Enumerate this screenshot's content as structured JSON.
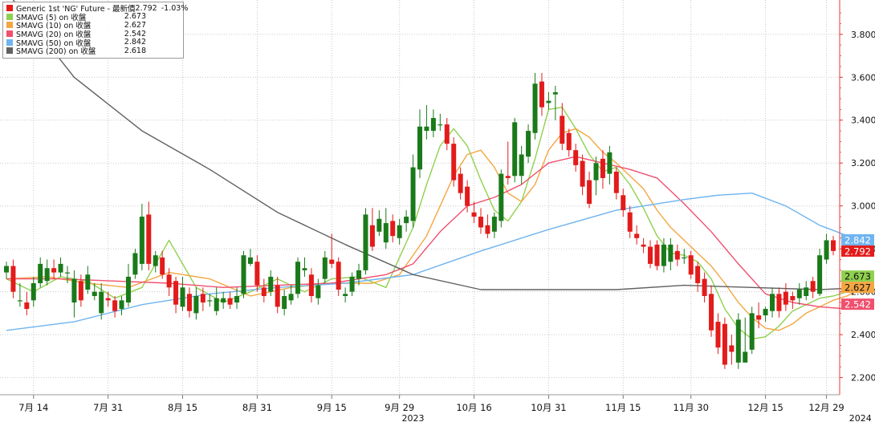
{
  "colors": {
    "up_candle": "#1a7a1a",
    "down_candle": "#e31b1b",
    "sma5": "#8fd14f",
    "sma10": "#f4a641",
    "sma20": "#f0506e",
    "sma50": "#6fb4f0",
    "sma200": "#616161",
    "axis": "#e53935",
    "grid": "#c9c9c9"
  },
  "legend": {
    "main_label": "Generic 1st 'NG' Future - 最新價",
    "main_value": "2.792",
    "main_change": "-1.03%",
    "series": [
      {
        "label": "SMAVG (5)  on 收盤",
        "value": "2.673",
        "color": "#8fd14f"
      },
      {
        "label": "SMAVG (10)  on 收盤",
        "value": "2.627",
        "color": "#f4a641"
      },
      {
        "label": "SMAVG (20)  on 收盤",
        "value": "2.542",
        "color": "#f0506e"
      },
      {
        "label": "SMAVG (50)  on 收盤",
        "value": "2.842",
        "color": "#6fb4f0"
      },
      {
        "label": "SMAVG (200)  on 收盤",
        "value": "2.618",
        "color": "#616161"
      }
    ]
  },
  "chart_data": {
    "type": "candlestick",
    "ylim": [
      2.12,
      3.96
    ],
    "y_ticks": [
      "2.200",
      "2.400",
      "2.600",
      "2.800",
      "3.000",
      "3.200",
      "3.400",
      "3.600",
      "3.800"
    ],
    "y_tick_values": [
      2.2,
      2.4,
      2.6,
      2.8,
      3.0,
      3.2,
      3.4,
      3.6,
      3.8
    ],
    "x_ticks": [
      {
        "label": "7月 14",
        "index": 4
      },
      {
        "label": "7月 31",
        "index": 15
      },
      {
        "label": "8月 15",
        "index": 26
      },
      {
        "label": "8月 31",
        "index": 37
      },
      {
        "label": "9月 15",
        "index": 48
      },
      {
        "label": "9月 29",
        "index": 58
      },
      {
        "label": "10月 16",
        "index": 69
      },
      {
        "label": "10月 31",
        "index": 80
      },
      {
        "label": "11月 15",
        "index": 91
      },
      {
        "label": "11月 30",
        "index": 101
      },
      {
        "label": "12月 15",
        "index": 112
      },
      {
        "label": "12月 29",
        "index": 121
      }
    ],
    "year_labels": [
      {
        "label": "2023",
        "index": 60
      },
      {
        "label": "2024",
        "index": 126
      }
    ],
    "last_value_tags": [
      {
        "value": 2.842,
        "label": "2.842",
        "color": "#6fb4f0"
      },
      {
        "value": 2.792,
        "label": "2.792",
        "color": "#e31b1b"
      },
      {
        "value": 2.673,
        "label": "2.673",
        "color": "#8fd14f"
      },
      {
        "value": 2.627,
        "label": "2.627",
        "color": "#f4a641"
      },
      {
        "value": 2.542,
        "label": "2.542",
        "color": "#f0506e"
      }
    ],
    "candles": {
      "open": [
        2.69,
        2.72,
        2.56,
        2.55,
        2.56,
        2.64,
        2.65,
        2.71,
        2.69,
        2.69,
        2.55,
        2.65,
        2.61,
        2.58,
        2.5,
        2.57,
        2.56,
        2.52,
        2.55,
        2.68,
        2.73,
        2.96,
        2.72,
        2.76,
        2.68,
        2.65,
        2.53,
        2.59,
        2.5,
        2.59,
        2.56,
        2.51,
        2.55,
        2.57,
        2.55,
        2.59,
        2.73,
        2.74,
        2.62,
        2.6,
        2.63,
        2.52,
        2.56,
        2.59,
        2.7,
        2.68,
        2.57,
        2.66,
        2.75,
        2.74,
        2.58,
        2.6,
        2.66,
        2.7,
        2.91,
        2.88,
        2.83,
        2.93,
        2.85,
        2.92,
        2.93,
        3.17,
        3.35,
        3.35,
        3.38,
        3.38,
        3.29,
        3.15,
        3.09,
        2.97,
        2.95,
        2.91,
        2.88,
        2.93,
        3.14,
        3.14,
        3.14,
        3.23,
        3.34,
        3.58,
        3.48,
        3.52,
        3.42,
        3.34,
        3.26,
        3.21,
        3.12,
        3.12,
        3.22,
        3.15,
        3.16,
        3.05,
        2.97,
        2.87,
        2.82,
        2.81,
        2.82,
        2.72,
        2.74,
        2.79,
        2.76,
        2.77,
        2.72,
        2.66,
        2.59,
        2.46,
        2.45,
        2.35,
        2.27,
        2.27,
        2.33,
        2.49,
        2.49,
        2.51,
        2.59,
        2.6,
        2.58,
        2.57,
        2.58,
        2.65,
        2.59,
        2.75,
        2.84
      ],
      "close": [
        2.72,
        2.6,
        2.56,
        2.52,
        2.64,
        2.73,
        2.71,
        2.69,
        2.73,
        2.69,
        2.66,
        2.56,
        2.68,
        2.6,
        2.6,
        2.56,
        2.51,
        2.56,
        2.67,
        2.78,
        2.95,
        2.73,
        2.77,
        2.68,
        2.62,
        2.54,
        2.62,
        2.51,
        2.58,
        2.55,
        2.56,
        2.57,
        2.57,
        2.54,
        2.58,
        2.77,
        2.76,
        2.63,
        2.58,
        2.67,
        2.53,
        2.58,
        2.59,
        2.74,
        2.71,
        2.58,
        2.63,
        2.76,
        2.73,
        2.61,
        2.59,
        2.67,
        2.7,
        2.96,
        2.81,
        2.94,
        2.92,
        2.86,
        2.91,
        2.95,
        3.18,
        3.37,
        3.37,
        3.41,
        3.38,
        3.29,
        3.12,
        3.06,
        3.0,
        2.95,
        2.9,
        2.87,
        2.95,
        3.15,
        3.13,
        3.39,
        3.24,
        3.35,
        3.57,
        3.46,
        3.49,
        3.53,
        3.29,
        3.26,
        3.19,
        3.09,
        3.01,
        3.2,
        3.13,
        3.25,
        3.06,
        2.98,
        2.88,
        2.85,
        2.81,
        2.73,
        2.72,
        2.82,
        2.82,
        2.75,
        2.76,
        2.68,
        2.64,
        2.58,
        2.42,
        2.34,
        2.26,
        2.32,
        2.47,
        2.32,
        2.5,
        2.47,
        2.52,
        2.59,
        2.51,
        2.54,
        2.56,
        2.61,
        2.62,
        2.6,
        2.77,
        2.84,
        2.79
      ],
      "high": [
        2.74,
        2.75,
        2.64,
        2.6,
        2.67,
        2.76,
        2.75,
        2.75,
        2.76,
        2.72,
        2.7,
        2.68,
        2.72,
        2.64,
        2.64,
        2.6,
        2.58,
        2.58,
        2.73,
        2.8,
        3.01,
        3.02,
        2.79,
        2.79,
        2.71,
        2.67,
        2.67,
        2.62,
        2.62,
        2.62,
        2.59,
        2.62,
        2.6,
        2.6,
        2.62,
        2.79,
        2.8,
        2.77,
        2.66,
        2.7,
        2.67,
        2.61,
        2.63,
        2.76,
        2.76,
        2.71,
        2.66,
        2.79,
        2.87,
        2.76,
        2.62,
        2.69,
        2.73,
        2.99,
        2.99,
        2.98,
        2.99,
        2.96,
        2.94,
        2.98,
        3.24,
        3.45,
        3.47,
        3.45,
        3.43,
        3.41,
        3.32,
        3.18,
        3.12,
        3.02,
        2.99,
        2.96,
        2.97,
        3.17,
        3.3,
        3.41,
        3.28,
        3.38,
        3.62,
        3.62,
        3.53,
        3.56,
        3.48,
        3.36,
        3.29,
        3.24,
        3.16,
        3.23,
        3.26,
        3.28,
        3.18,
        3.08,
        3.0,
        2.91,
        2.85,
        2.84,
        2.84,
        2.85,
        2.85,
        2.82,
        2.8,
        2.79,
        2.74,
        2.69,
        2.63,
        2.5,
        2.48,
        2.4,
        2.5,
        2.48,
        2.53,
        2.55,
        2.53,
        2.62,
        2.62,
        2.64,
        2.6,
        2.64,
        2.65,
        2.67,
        2.8,
        2.87,
        2.86
      ],
      "low": [
        2.66,
        2.57,
        2.53,
        2.49,
        2.53,
        2.62,
        2.63,
        2.66,
        2.67,
        2.64,
        2.48,
        2.53,
        2.59,
        2.56,
        2.47,
        2.53,
        2.48,
        2.49,
        2.53,
        2.66,
        2.7,
        2.7,
        2.69,
        2.66,
        2.58,
        2.5,
        2.51,
        2.48,
        2.47,
        2.51,
        2.53,
        2.49,
        2.52,
        2.52,
        2.52,
        2.57,
        2.72,
        2.6,
        2.55,
        2.58,
        2.5,
        2.49,
        2.54,
        2.57,
        2.67,
        2.55,
        2.54,
        2.64,
        2.71,
        2.58,
        2.55,
        2.58,
        2.63,
        2.68,
        2.79,
        2.86,
        2.8,
        2.83,
        2.82,
        2.88,
        2.9,
        3.13,
        3.31,
        3.32,
        3.35,
        3.26,
        3.09,
        3.03,
        2.97,
        2.92,
        2.87,
        2.85,
        2.85,
        2.9,
        3.1,
        3.11,
        3.1,
        3.2,
        3.31,
        3.42,
        3.45,
        3.4,
        3.26,
        3.23,
        3.16,
        3.05,
        2.99,
        3.05,
        3.08,
        3.1,
        3.03,
        2.95,
        2.85,
        2.82,
        2.78,
        2.71,
        2.7,
        2.69,
        2.7,
        2.72,
        2.73,
        2.66,
        2.6,
        2.55,
        2.39,
        2.31,
        2.24,
        2.26,
        2.24,
        2.3,
        2.31,
        2.43,
        2.46,
        2.48,
        2.48,
        2.51,
        2.52,
        2.54,
        2.56,
        2.57,
        2.58,
        2.73,
        2.77
      ]
    },
    "series": [
      {
        "name": "SMAVG (5)",
        "color": "#8fd14f",
        "x": [
          0,
          4,
          8,
          12,
          16,
          20,
          24,
          28,
          32,
          36,
          40,
          44,
          48,
          52,
          56,
          60,
          62,
          64,
          66,
          68,
          70,
          72,
          74,
          76,
          78,
          80,
          82,
          84,
          86,
          88,
          90,
          92,
          94,
          96,
          98,
          100,
          102,
          104,
          106,
          108,
          110,
          112,
          114,
          116,
          118,
          120,
          122,
          124,
          127
        ],
        "values": [
          2.66,
          2.6,
          2.67,
          2.65,
          2.57,
          2.62,
          2.84,
          2.62,
          2.55,
          2.6,
          2.66,
          2.6,
          2.66,
          2.67,
          2.62,
          2.9,
          3.1,
          3.28,
          3.36,
          3.28,
          3.12,
          2.98,
          2.93,
          3.02,
          3.22,
          3.45,
          3.46,
          3.36,
          3.24,
          3.16,
          3.18,
          3.1,
          2.99,
          2.86,
          2.78,
          2.77,
          2.74,
          2.66,
          2.52,
          2.43,
          2.38,
          2.39,
          2.44,
          2.51,
          2.54,
          2.57,
          2.58,
          2.6,
          2.67
        ]
      },
      {
        "name": "SMAVG (10)",
        "color": "#f4a641",
        "x": [
          0,
          6,
          12,
          18,
          24,
          30,
          36,
          42,
          48,
          54,
          58,
          62,
          64,
          66,
          68,
          70,
          72,
          74,
          76,
          78,
          80,
          82,
          84,
          86,
          88,
          90,
          92,
          94,
          96,
          98,
          100,
          102,
          104,
          106,
          108,
          110,
          112,
          114,
          116,
          118,
          120,
          122,
          124,
          127
        ],
        "values": [
          2.66,
          2.67,
          2.64,
          2.62,
          2.69,
          2.66,
          2.58,
          2.62,
          2.64,
          2.64,
          2.68,
          2.86,
          3.0,
          3.14,
          3.24,
          3.26,
          3.18,
          3.06,
          3.02,
          3.1,
          3.26,
          3.34,
          3.36,
          3.32,
          3.25,
          3.2,
          3.14,
          3.08,
          2.98,
          2.9,
          2.84,
          2.78,
          2.72,
          2.64,
          2.55,
          2.48,
          2.43,
          2.42,
          2.45,
          2.5,
          2.53,
          2.56,
          2.58,
          2.63
        ]
      },
      {
        "name": "SMAVG (20)",
        "color": "#f0506e",
        "x": [
          0,
          8,
          16,
          24,
          32,
          40,
          48,
          56,
          60,
          64,
          68,
          72,
          76,
          80,
          84,
          88,
          92,
          96,
          100,
          104,
          108,
          112,
          116,
          120,
          124,
          127
        ],
        "values": [
          2.66,
          2.66,
          2.65,
          2.64,
          2.62,
          2.63,
          2.64,
          2.68,
          2.73,
          2.88,
          3.0,
          3.04,
          3.1,
          3.2,
          3.23,
          3.2,
          3.17,
          3.13,
          3.01,
          2.88,
          2.73,
          2.59,
          2.55,
          2.53,
          2.52,
          2.54
        ]
      },
      {
        "name": "SMAVG (50)",
        "color": "#6fb4f0",
        "x": [
          0,
          10,
          20,
          30,
          40,
          50,
          60,
          70,
          80,
          90,
          100,
          105,
          110,
          115,
          120,
          125,
          127
        ],
        "values": [
          2.42,
          2.46,
          2.54,
          2.59,
          2.62,
          2.64,
          2.68,
          2.79,
          2.89,
          2.98,
          3.03,
          3.05,
          3.06,
          3.0,
          2.91,
          2.85,
          2.84
        ]
      },
      {
        "name": "SMAVG (200)",
        "color": "#616161",
        "x": [
          0,
          10,
          20,
          30,
          40,
          50,
          60,
          70,
          80,
          90,
          100,
          110,
          120,
          127
        ],
        "values": [
          4.0,
          3.6,
          3.35,
          3.17,
          2.97,
          2.82,
          2.68,
          2.61,
          2.61,
          2.61,
          2.63,
          2.62,
          2.61,
          2.62
        ]
      }
    ]
  }
}
